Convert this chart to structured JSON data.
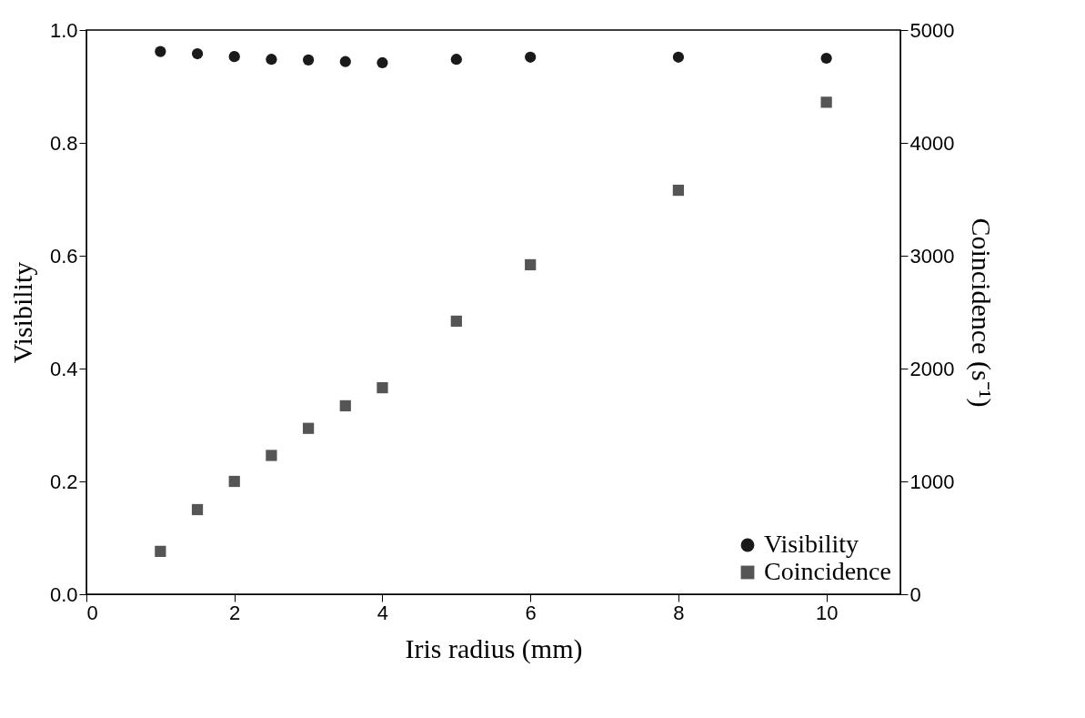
{
  "chart_data": {
    "type": "scatter",
    "xlabel": "Iris radius (mm)",
    "ylabel": "Visibility",
    "y2label": "Coincidence (s⁻¹)",
    "x": [
      1,
      1.5,
      2,
      2.5,
      3,
      3.5,
      4,
      5,
      6,
      8,
      10
    ],
    "series": [
      {
        "name": "Visibility",
        "color": "#1a1a1a",
        "marker": "circle",
        "values": [
          0.962,
          0.958,
          0.953,
          0.948,
          0.947,
          0.944,
          0.942,
          0.948,
          0.952,
          0.952,
          0.95
        ]
      },
      {
        "name": "Coincidence",
        "color": "#555555",
        "marker": "square",
        "axis": "y2",
        "values": [
          380,
          750,
          1000,
          1230,
          1470,
          1670,
          1830,
          2420,
          2920,
          3580,
          4360
        ]
      }
    ],
    "xlim": [
      0,
      11
    ],
    "xticks": [
      0,
      2,
      4,
      6,
      8,
      10
    ],
    "ylim": [
      0,
      1
    ],
    "yticks": [
      {
        "value": 0,
        "label": "0.0"
      },
      0.2,
      0.4,
      0.6,
      0.8,
      {
        "value": 1,
        "label": "1.0"
      }
    ],
    "y2lim": [
      0,
      5000
    ],
    "y2ticks": [
      0,
      1000,
      2000,
      3000,
      4000,
      5000
    ],
    "legend": "bottom right",
    "grid": false
  }
}
